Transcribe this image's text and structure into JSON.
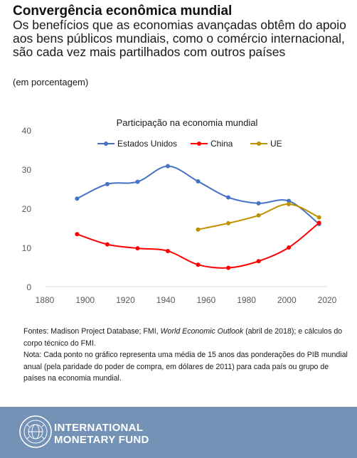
{
  "header": {
    "title": "Convergência econômica mundial",
    "subtitle": "Os benefícios que as economias avançadas obtêm do apoio aos bens públicos mundiais, como o comércio internacional, são cada vez mais partilhados com outros países",
    "unit": "(em porcentagem)"
  },
  "chart_data": {
    "type": "line",
    "title": "Participação na economia mundial",
    "xlabel": "",
    "ylabel": "",
    "xlim": [
      1880,
      2020
    ],
    "ylim": [
      0,
      40
    ],
    "x_ticks": [
      1880,
      1900,
      1920,
      1940,
      1960,
      1980,
      2000,
      2020
    ],
    "y_ticks": [
      0,
      10,
      20,
      30,
      40
    ],
    "grid": false,
    "legend_position": "top",
    "series": [
      {
        "name": "Estados Unidos",
        "color": "#4472c4",
        "points": [
          [
            1896,
            22.5
          ],
          [
            1911,
            26.2
          ],
          [
            1926,
            26.8
          ],
          [
            1941,
            30.8
          ],
          [
            1956,
            26.9
          ],
          [
            1971,
            22.8
          ],
          [
            1986,
            21.3
          ],
          [
            2001,
            21.9
          ],
          [
            2016,
            16.0
          ]
        ]
      },
      {
        "name": "China",
        "color": "#ff0000",
        "points": [
          [
            1896,
            13.4
          ],
          [
            1911,
            10.8
          ],
          [
            1926,
            9.8
          ],
          [
            1941,
            9.1
          ],
          [
            1956,
            5.6
          ],
          [
            1971,
            4.8
          ],
          [
            1986,
            6.5
          ],
          [
            2001,
            10.0
          ],
          [
            2016,
            16.3
          ]
        ]
      },
      {
        "name": "UE",
        "color": "#bf9000",
        "points": [
          [
            1956,
            14.6
          ],
          [
            1971,
            16.2
          ],
          [
            1986,
            18.2
          ],
          [
            2001,
            21.1
          ],
          [
            2016,
            17.7
          ]
        ]
      }
    ]
  },
  "notes": {
    "sources_prefix": "Fontes: Madison Project Database; FMI, ",
    "sources_italic": "World Economic Outlook",
    "sources_suffix": " (abril de 2018); e cálculos do corpo técnico do FMI.",
    "note": "Nota: Cada ponto no gráfico representa uma média de 15 anos das ponderações do PIB mundial anual (pela paridade do poder de compra, em dólares de 2011) para cada país ou grupo de países na economia mundial."
  },
  "footer": {
    "org_line_1": "INTERNATIONAL",
    "org_line_2": "MONETARY FUND",
    "seal_icon": "imf-seal-icon",
    "background": "#7392b5"
  }
}
